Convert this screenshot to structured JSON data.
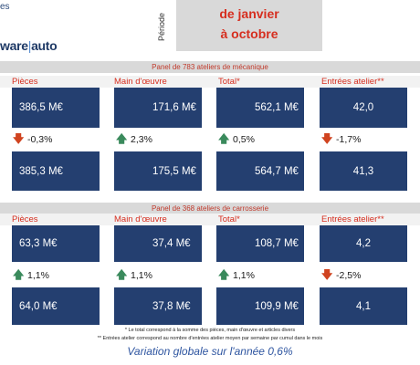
{
  "header": {
    "top_left_fragment": "es",
    "logo_left": "ware",
    "logo_sep": "|",
    "logo_right": "auto",
    "periode_label": "Période",
    "period_line1": "de janvier",
    "period_line2": "à octobre"
  },
  "mechanic": {
    "panel_title": "Panel de 783 ateliers de mécanique",
    "columns": [
      "Pièces",
      "Main d'œuvre",
      "Total*",
      "Entrées atelier**"
    ],
    "top_values": [
      "386,5 M€",
      "171,6 M€",
      "562,1 M€",
      "42,0"
    ],
    "variations": [
      {
        "direction": "down",
        "arrow": "🡇",
        "value": "-0,3%"
      },
      {
        "direction": "up",
        "arrow": "🡅",
        "value": "2,3%"
      },
      {
        "direction": "up",
        "arrow": "🡅",
        "value": "0,5%"
      },
      {
        "direction": "down",
        "arrow": "🡇",
        "value": "-1,7%"
      }
    ],
    "bottom_values": [
      "385,3 M€",
      "175,5 M€",
      "564,7 M€",
      "41,3"
    ]
  },
  "body_shop": {
    "panel_title": "Panel de 368 ateliers de carrosserie",
    "columns": [
      "Pièces",
      "Main d'œuvre",
      "Total*",
      "Entrées atelier**"
    ],
    "top_values": [
      "63,3 M€",
      "37,4 M€",
      "108,7 M€",
      "4,2"
    ],
    "variations": [
      {
        "direction": "up",
        "arrow": "🡅",
        "value": "1,1%"
      },
      {
        "direction": "up",
        "arrow": "🡅",
        "value": "1,1%"
      },
      {
        "direction": "up",
        "arrow": "🡅",
        "value": "1,1%"
      },
      {
        "direction": "down",
        "arrow": "🡇",
        "value": "-2,5%"
      }
    ],
    "bottom_values": [
      "64,0 M€",
      "37,8 M€",
      "109,9 M€",
      "4,1"
    ]
  },
  "notes": {
    "note1": "* Le total correspond à la somme des pièces, main d'œuvre et articles divers",
    "note2": "** Entrées atelier correspond au nombre d'entrées atelier moyen par semaine par cumul dans le mois"
  },
  "summary": "Variation globale sur l'année 0,6%",
  "colors": {
    "accent_red": "#d62e1f",
    "value_box_navy": "#243f70",
    "arrow_down": "#d0431f",
    "arrow_up": "#3a8a5c",
    "summary_blue": "#2e55a0"
  }
}
